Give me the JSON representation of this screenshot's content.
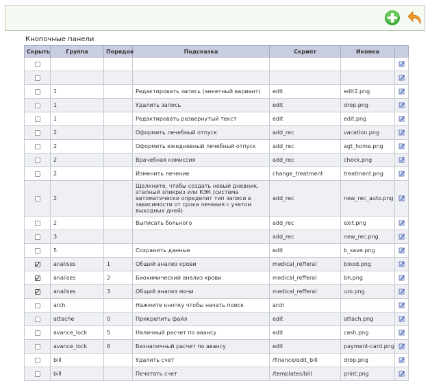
{
  "header": {
    "title": "Кнопочные панели"
  },
  "table": {
    "columns": [
      "Скрыть",
      "Группа",
      "Порядок",
      "Подсказка",
      "Скрипт",
      "Иконка"
    ],
    "rows": [
      {
        "hidden": false,
        "group": null,
        "order": null,
        "hint": null,
        "script": null,
        "icon": null
      },
      {
        "hidden": false,
        "group": null,
        "order": null,
        "hint": null,
        "script": null,
        "icon": null
      },
      {
        "hidden": false,
        "group": "1",
        "order": null,
        "hint": "Редактировать запись (анкетный вариант)",
        "script": "edit",
        "icon": "edit2.png"
      },
      {
        "hidden": false,
        "group": "1",
        "order": null,
        "hint": "Удалить запись",
        "script": "edit",
        "icon": "drop.png"
      },
      {
        "hidden": false,
        "group": "1",
        "order": null,
        "hint": "Редактировать развернутый текст",
        "script": "edit",
        "icon": "edit.png"
      },
      {
        "hidden": false,
        "group": "2",
        "order": null,
        "hint": "Оформить лечебный отпуск",
        "script": "add_rec",
        "icon": "vacation.png"
      },
      {
        "hidden": false,
        "group": "2",
        "order": null,
        "hint": "Оформить ежедневный лечебный отпуск",
        "script": "add_rec",
        "icon": "agt_home.png"
      },
      {
        "hidden": false,
        "group": "2",
        "order": null,
        "hint": "Врачебная комиссия",
        "script": "add_rec",
        "icon": "check.png"
      },
      {
        "hidden": false,
        "group": "2",
        "order": null,
        "hint": "Изменить лечение",
        "script": "change_treatment",
        "icon": "treatment.png"
      },
      {
        "hidden": false,
        "group": "2",
        "order": null,
        "hint": "Щелкните, чтобы создать новый дневник, этапный эпикриз или КЭК (система автоматически определит тип записи в зависимости от срока лечения с учетом выходных дней)",
        "script": "add_rec",
        "icon": "new_rec_auto.png"
      },
      {
        "hidden": false,
        "group": "2",
        "order": null,
        "hint": "Выписать больного",
        "script": "add_rec",
        "icon": "exit.png"
      },
      {
        "hidden": false,
        "group": "3",
        "order": null,
        "hint": null,
        "script": "add_rec",
        "icon": "new_rec.png"
      },
      {
        "hidden": false,
        "group": "5",
        "order": null,
        "hint": "Сохранить данные",
        "script": "edit",
        "icon": "b_save.png"
      },
      {
        "hidden": true,
        "group": "analises",
        "order": "1",
        "hint": "Общий анализ крови",
        "script": "medical_refferal",
        "icon": "blood.png"
      },
      {
        "hidden": true,
        "group": "analises",
        "order": "2",
        "hint": "Биохимический анализ крови",
        "script": "medical_refferal",
        "icon": "bh.png"
      },
      {
        "hidden": true,
        "group": "analises",
        "order": "3",
        "hint": "Общий анализ мочи",
        "script": "medical_refferal",
        "icon": "uro.png"
      },
      {
        "hidden": false,
        "group": "arch",
        "order": null,
        "hint": "Нажмите кнопку чтобы начать поиск",
        "script": "arch",
        "icon": null
      },
      {
        "hidden": false,
        "group": "attache",
        "order": "0",
        "hint": "Прикрепить файл",
        "script": "edit",
        "icon": "attach.png"
      },
      {
        "hidden": false,
        "group": "avance_lock",
        "order": "5",
        "hint": "Наличный расчет по авансу",
        "script": "edit",
        "icon": "cash.png"
      },
      {
        "hidden": false,
        "group": "avance_lock",
        "order": "6",
        "hint": "Безналичный расчет по авансу",
        "script": "edit",
        "icon": "payment-card.png"
      },
      {
        "hidden": false,
        "group": "bill",
        "order": null,
        "hint": "Удалить счет",
        "script": "/finance/edit_bill",
        "icon": "drop.png"
      },
      {
        "hidden": false,
        "group": "bill",
        "order": null,
        "hint": "Печатать счет",
        "script": "/templates/bill",
        "icon": "print.png"
      }
    ]
  }
}
